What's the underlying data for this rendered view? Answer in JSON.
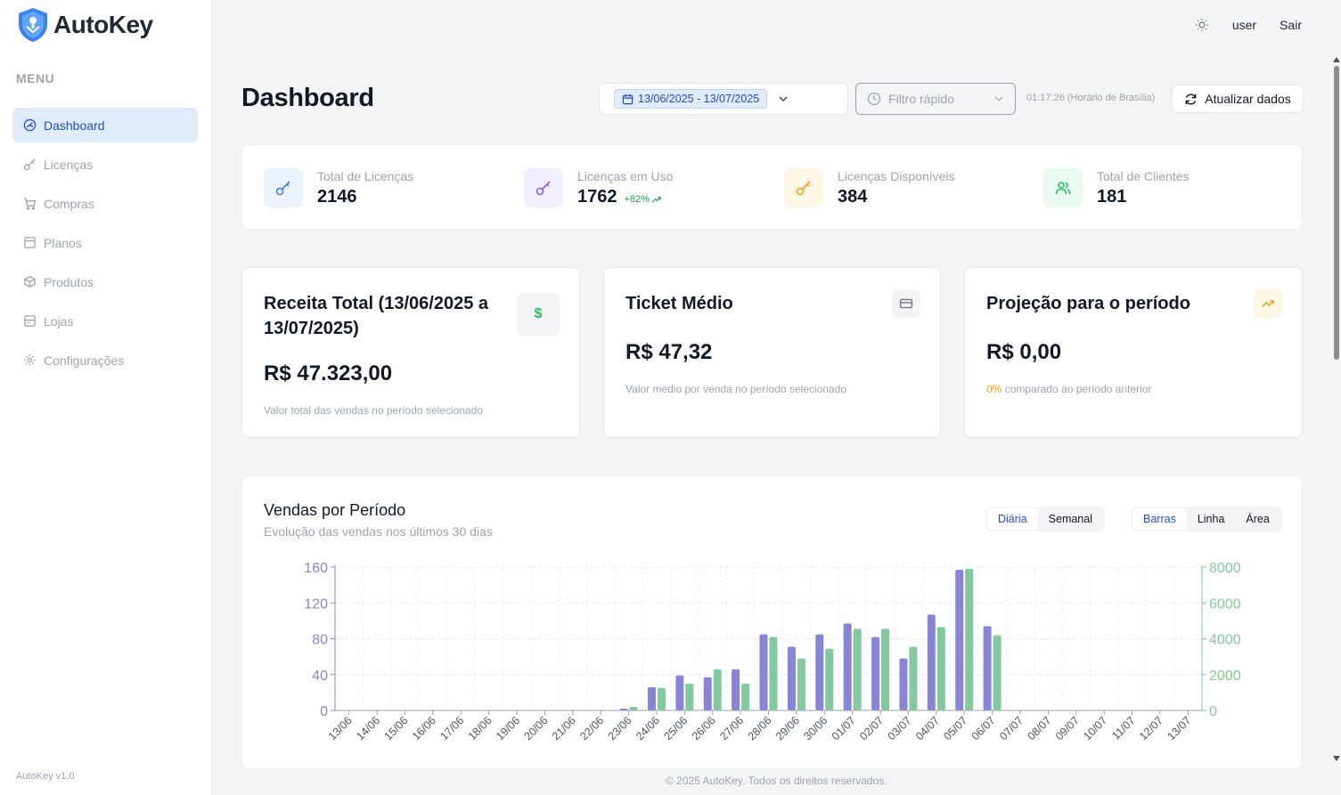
{
  "brand": {
    "name": "AutoKey",
    "version": "AutoKey v1.0"
  },
  "sidebar": {
    "menu_title": "MENU",
    "items": [
      {
        "label": "Dashboard",
        "icon": "gauge-icon",
        "active": true
      },
      {
        "label": "Licenças",
        "icon": "key-icon"
      },
      {
        "label": "Compras",
        "icon": "cart-icon"
      },
      {
        "label": "Planos",
        "icon": "card-icon"
      },
      {
        "label": "Produtos",
        "icon": "package-icon"
      },
      {
        "label": "Lojas",
        "icon": "store-icon"
      },
      {
        "label": "Configurações",
        "icon": "gear-icon"
      }
    ]
  },
  "topbar": {
    "theme_icon": "sun-icon",
    "user": "user",
    "logout": "Sair"
  },
  "header": {
    "title": "Dashboard",
    "date_range": "13/06/2025 - 13/07/2025",
    "quick_filter_placeholder": "Filtro rápido",
    "time": "01:17:26 (Horário de Brasília)",
    "refresh_label": "Atualizar dados"
  },
  "stats": [
    {
      "label": "Total de Licenças",
      "value": "2146",
      "color": "#3b82f6",
      "bg": "#eaf2fd"
    },
    {
      "label": "Licenças em Uso",
      "value": "1762",
      "badge": "+82%",
      "color": "#8b5cf6",
      "bg": "#f3eefd"
    },
    {
      "label": "Licenças Disponíveis",
      "value": "384",
      "color": "#f59e0b",
      "bg": "#fef7e6"
    },
    {
      "label": "Total de Clientes",
      "value": "181",
      "color": "#22c55e",
      "bg": "#eafaf0"
    }
  ],
  "revenue": {
    "title": "Receita Total (13/06/2025 a 13/07/2025)",
    "value": "R$ 47.323,00",
    "desc": "Valor total das vendas no período selecionado",
    "icon_symbol": "$"
  },
  "ticket": {
    "title": "Ticket Médio",
    "value": "R$ 47,32",
    "desc": "Valor médio por venda no período selecionado"
  },
  "projection": {
    "title": "Projeção para o período",
    "value": "R$ 0,00",
    "pct": "0%",
    "desc": "comparado ao período anterior"
  },
  "chart_section": {
    "title": "Vendas por Período",
    "subtitle": "Evolução das vendas nos últimos 30 dias",
    "period_tabs": [
      "Diária",
      "Semanal"
    ],
    "type_tabs": [
      "Barras",
      "Linha",
      "Área"
    ]
  },
  "chart_data": {
    "type": "bar",
    "categories": [
      "13/06",
      "14/06",
      "15/06",
      "16/06",
      "17/06",
      "18/06",
      "19/06",
      "20/06",
      "21/06",
      "22/06",
      "23/06",
      "24/06",
      "25/06",
      "26/06",
      "27/06",
      "28/06",
      "29/06",
      "30/06",
      "01/07",
      "02/07",
      "03/07",
      "04/07",
      "05/07",
      "06/07",
      "07/07",
      "08/07",
      "09/07",
      "10/07",
      "11/07",
      "12/07",
      "13/07"
    ],
    "series": [
      {
        "axis": "left",
        "color": "#8884d8",
        "values": [
          0,
          0,
          0,
          0,
          0,
          0,
          0,
          0,
          0,
          0,
          2,
          26,
          39,
          37,
          46,
          85,
          71,
          85,
          97,
          82,
          58,
          107,
          157,
          94,
          0,
          0,
          0,
          0,
          0,
          0,
          0
        ]
      },
      {
        "axis": "right",
        "color": "#82ca9d",
        "values": [
          0,
          0,
          0,
          0,
          0,
          0,
          0,
          0,
          0,
          0,
          200,
          1250,
          1500,
          2300,
          1500,
          4100,
          2900,
          3450,
          4550,
          4550,
          3550,
          4650,
          7900,
          4200,
          0,
          0,
          0,
          0,
          0,
          0,
          0
        ]
      }
    ],
    "left_axis": {
      "ticks": [
        0,
        40,
        80,
        120,
        160
      ],
      "max": 160,
      "color": "#8884d8"
    },
    "right_axis": {
      "ticks": [
        0,
        2000,
        4000,
        6000,
        8000
      ],
      "max": 8000,
      "color": "#82ca9d"
    },
    "grid": true
  },
  "footer": "© 2025 AutoKey. Todos os direitos reservados."
}
